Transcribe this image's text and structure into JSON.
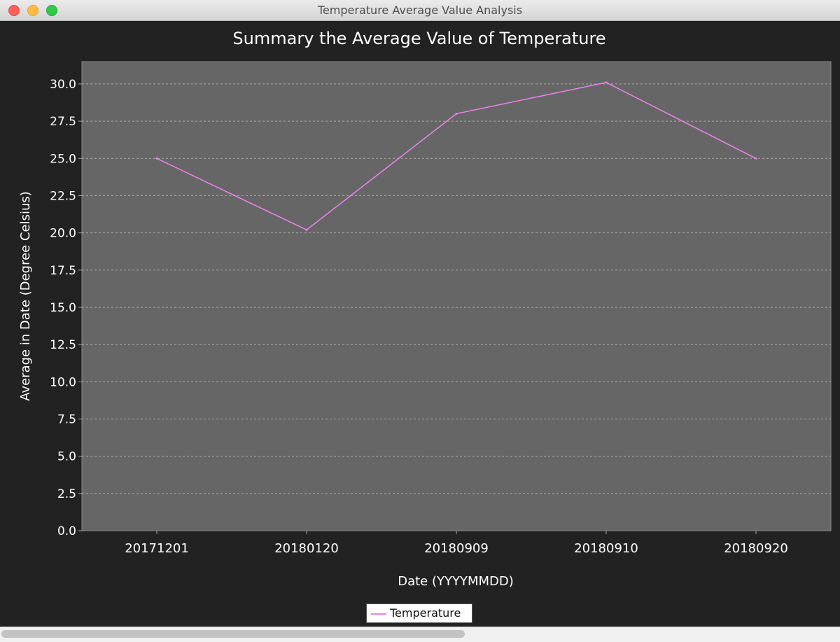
{
  "window": {
    "title": "Temperature Average Value Analysis"
  },
  "chart_data": {
    "type": "line",
    "title": "Summary the Average Value of Temperature",
    "xlabel": "Date (YYYYMMDD)",
    "ylabel": "Average in Date (Degree Celsius)",
    "categories": [
      "20171201",
      "20180120",
      "20180909",
      "20180910",
      "20180920"
    ],
    "series": [
      {
        "name": "Temperature",
        "values": [
          25.0,
          20.2,
          28.0,
          30.1,
          25.0
        ]
      }
    ],
    "ylim": [
      0,
      31.5
    ],
    "yticks": [
      "0.0",
      "2.5",
      "5.0",
      "7.5",
      "10.0",
      "12.5",
      "15.0",
      "17.5",
      "20.0",
      "22.5",
      "25.0",
      "27.5",
      "30.0"
    ],
    "grid": true,
    "legend_position": "bottom",
    "colors": {
      "series": "#ee82ee",
      "plot_background": "#666666",
      "background": "#222222",
      "grid": "#aaaaaa",
      "text": "#ffffff"
    }
  }
}
